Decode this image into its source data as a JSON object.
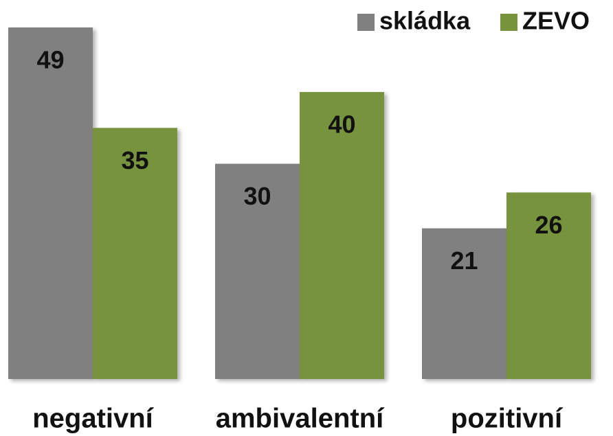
{
  "chart_data": {
    "type": "bar",
    "categories": [
      "negativní",
      "ambivalentní",
      "pozitivní"
    ],
    "series": [
      {
        "name": "skládka",
        "color": "#808080",
        "values": [
          49,
          30,
          21
        ]
      },
      {
        "name": "ZEVO",
        "color": "#77933c",
        "values": [
          35,
          40,
          26
        ]
      }
    ],
    "legend": "top-right"
  }
}
